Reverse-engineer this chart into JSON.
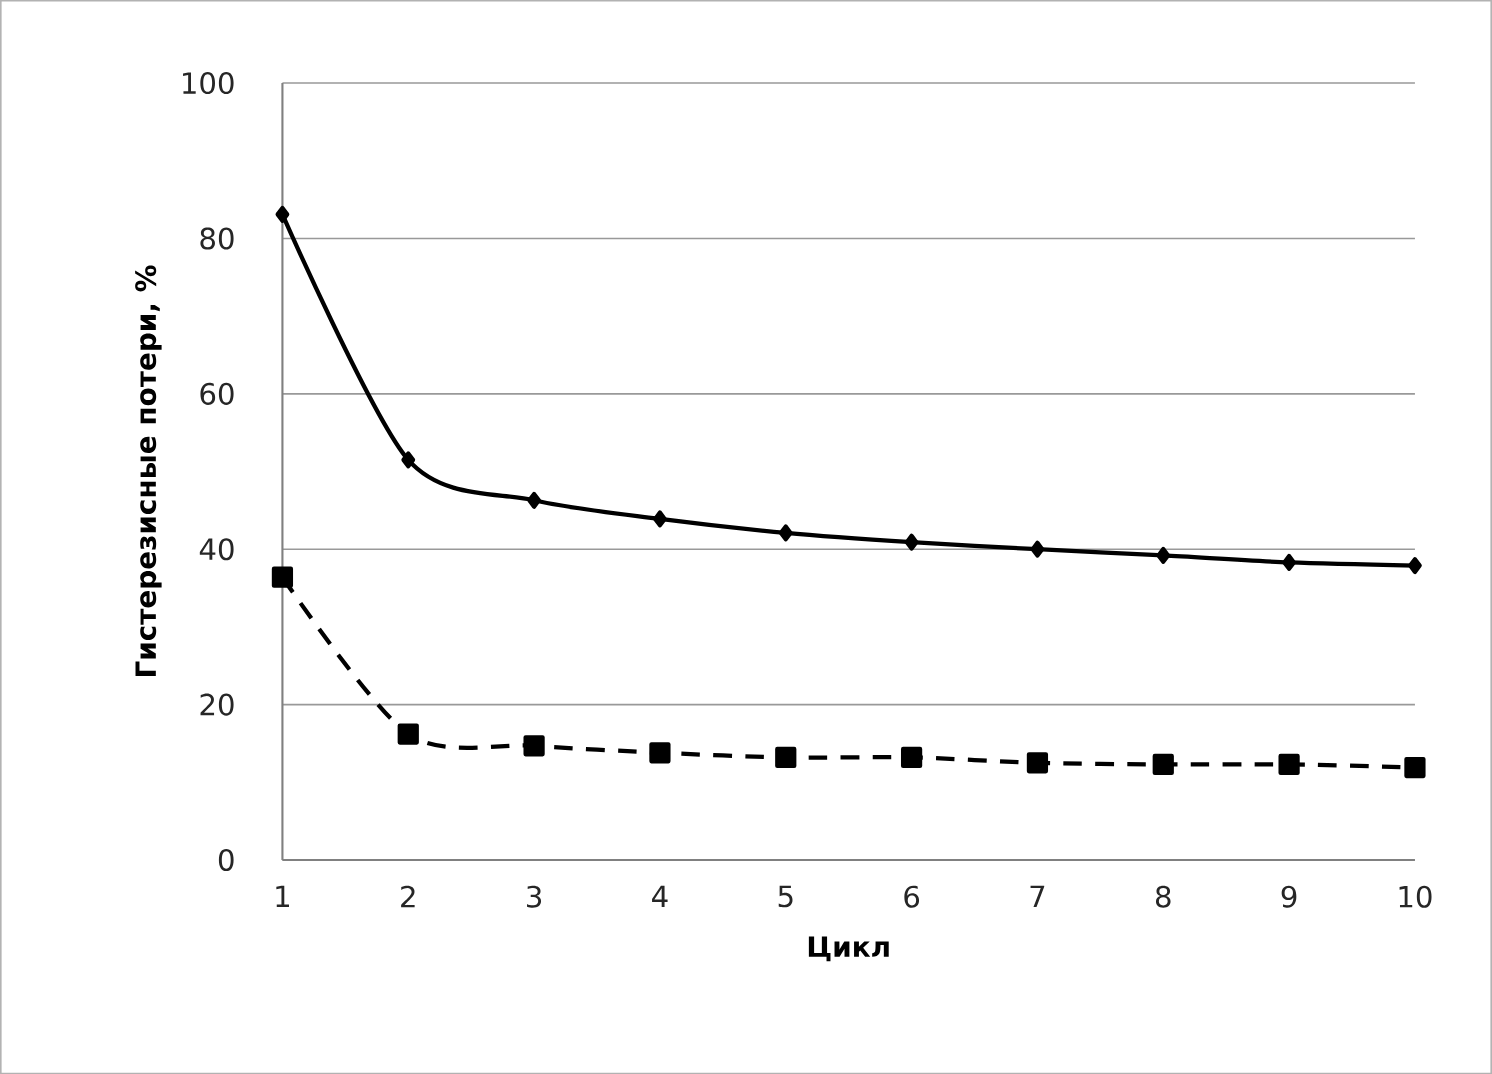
{
  "chart_data": {
    "type": "line",
    "xlabel": "Цикл",
    "ylabel": "Гистерезисные потери, %",
    "x": [
      1,
      2,
      3,
      4,
      5,
      6,
      7,
      8,
      9,
      10
    ],
    "series": [
      {
        "color": "#000000",
        "marker": "diamond",
        "line_style": "solid",
        "values": [
          83.1,
          51.5,
          46.3,
          43.9,
          42.1,
          40.9,
          40.0,
          39.2,
          38.3,
          37.9
        ]
      },
      {
        "color": "#000000",
        "marker": "square",
        "line_style": "dashed",
        "values": [
          36.4,
          16.2,
          14.7,
          13.8,
          13.2,
          13.2,
          12.5,
          12.3,
          12.3,
          11.9
        ]
      }
    ],
    "xlim": [
      1,
      10
    ],
    "xticks": [
      1,
      2,
      3,
      4,
      5,
      6,
      7,
      8,
      9,
      10
    ],
    "ylim": [
      0,
      100
    ],
    "yticks": [
      0,
      20,
      40,
      60,
      80,
      100
    ],
    "grid": "y"
  }
}
